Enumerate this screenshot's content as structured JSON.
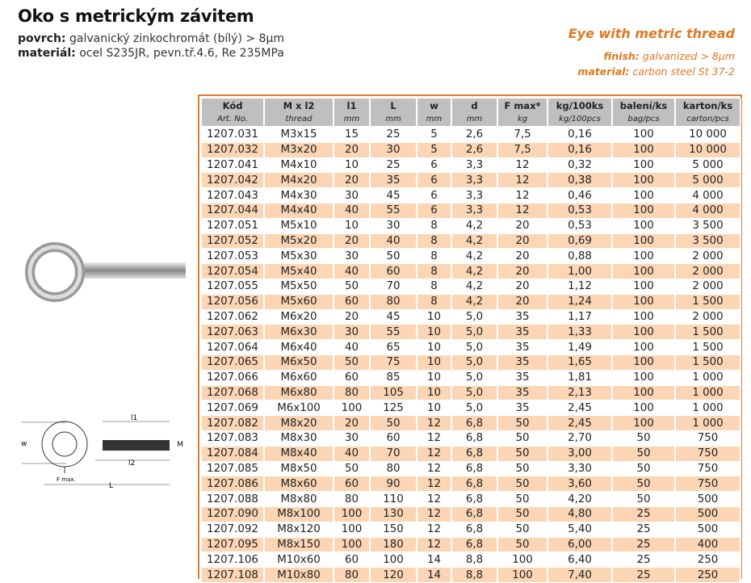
{
  "cz": {
    "title": "Oko s metrickým závitem",
    "surface_label": "povrch:",
    "surface_value": "galvanický zinkochromát (bílý) > 8µm",
    "material_label": "materiál:",
    "material_value": "ocel S235JR, pevn.tř.4.6, Re 235MPa"
  },
  "en": {
    "title": "Eye with metric thread",
    "finish_label": "finish:",
    "finish_value": "galvanized > 8µm",
    "material_label": "material:",
    "material_value": "carbon steel St 37-2"
  },
  "drawing_labels": {
    "l1": "l1",
    "l2": "l2",
    "w": "w",
    "M": "M",
    "L": "L",
    "fmax": "F max."
  },
  "accent": "#e07820",
  "table": {
    "headers": [
      "Kód",
      "M x l2",
      "l1",
      "L",
      "w",
      "d",
      "F max*",
      "kg/100ks",
      "balení/ks",
      "karton/ks"
    ],
    "units": [
      "Art. No.",
      "thread",
      "mm",
      "mm",
      "mm",
      "mm",
      "kg",
      "kg/100pcs",
      "bag/pcs",
      "carton/pcs"
    ],
    "rows": [
      [
        "1207.031",
        "M3x15",
        "15",
        "25",
        "5",
        "2,6",
        "7,5",
        "0,16",
        "100",
        "10 000"
      ],
      [
        "1207.032",
        "M3x20",
        "20",
        "30",
        "5",
        "2,6",
        "7,5",
        "0,16",
        "100",
        "10 000"
      ],
      [
        "1207.041",
        "M4x10",
        "10",
        "25",
        "6",
        "3,3",
        "12",
        "0,32",
        "100",
        "5 000"
      ],
      [
        "1207.042",
        "M4x20",
        "20",
        "35",
        "6",
        "3,3",
        "12",
        "0,38",
        "100",
        "5 000"
      ],
      [
        "1207.043",
        "M4x30",
        "30",
        "45",
        "6",
        "3,3",
        "12",
        "0,46",
        "100",
        "4 000"
      ],
      [
        "1207.044",
        "M4x40",
        "40",
        "55",
        "6",
        "3,3",
        "12",
        "0,53",
        "100",
        "4 000"
      ],
      [
        "1207.051",
        "M5x10",
        "10",
        "30",
        "8",
        "4,2",
        "20",
        "0,53",
        "100",
        "3 500"
      ],
      [
        "1207.052",
        "M5x20",
        "20",
        "40",
        "8",
        "4,2",
        "20",
        "0,69",
        "100",
        "3 500"
      ],
      [
        "1207.053",
        "M5x30",
        "30",
        "50",
        "8",
        "4,2",
        "20",
        "0,88",
        "100",
        "2 000"
      ],
      [
        "1207.054",
        "M5x40",
        "40",
        "60",
        "8",
        "4,2",
        "20",
        "1,00",
        "100",
        "2 000"
      ],
      [
        "1207.055",
        "M5x50",
        "50",
        "70",
        "8",
        "4,2",
        "20",
        "1,12",
        "100",
        "2 000"
      ],
      [
        "1207.056",
        "M5x60",
        "60",
        "80",
        "8",
        "4,2",
        "20",
        "1,24",
        "100",
        "1 500"
      ],
      [
        "1207.062",
        "M6x20",
        "20",
        "45",
        "10",
        "5,0",
        "35",
        "1,17",
        "100",
        "2 000"
      ],
      [
        "1207.063",
        "M6x30",
        "30",
        "55",
        "10",
        "5,0",
        "35",
        "1,33",
        "100",
        "1 500"
      ],
      [
        "1207.064",
        "M6x40",
        "40",
        "65",
        "10",
        "5,0",
        "35",
        "1,49",
        "100",
        "1 500"
      ],
      [
        "1207.065",
        "M6x50",
        "50",
        "75",
        "10",
        "5,0",
        "35",
        "1,65",
        "100",
        "1 500"
      ],
      [
        "1207.066",
        "M6x60",
        "60",
        "85",
        "10",
        "5,0",
        "35",
        "1,81",
        "100",
        "1 000"
      ],
      [
        "1207.068",
        "M6x80",
        "80",
        "105",
        "10",
        "5,0",
        "35",
        "2,13",
        "100",
        "1 000"
      ],
      [
        "1207.069",
        "M6x100",
        "100",
        "125",
        "10",
        "5,0",
        "35",
        "2,45",
        "100",
        "1 000"
      ],
      [
        "1207.082",
        "M8x20",
        "20",
        "50",
        "12",
        "6,8",
        "50",
        "2,45",
        "100",
        "1 000"
      ],
      [
        "1207.083",
        "M8x30",
        "30",
        "60",
        "12",
        "6,8",
        "50",
        "2,70",
        "50",
        "750"
      ],
      [
        "1207.084",
        "M8x40",
        "40",
        "70",
        "12",
        "6,8",
        "50",
        "3,00",
        "50",
        "750"
      ],
      [
        "1207.085",
        "M8x50",
        "50",
        "80",
        "12",
        "6,8",
        "50",
        "3,30",
        "50",
        "750"
      ],
      [
        "1207.086",
        "M8x60",
        "60",
        "90",
        "12",
        "6,8",
        "50",
        "3,60",
        "50",
        "750"
      ],
      [
        "1207.088",
        "M8x80",
        "80",
        "110",
        "12",
        "6,8",
        "50",
        "4,20",
        "50",
        "500"
      ],
      [
        "1207.090",
        "M8x100",
        "100",
        "130",
        "12",
        "6,8",
        "50",
        "4,80",
        "25",
        "500"
      ],
      [
        "1207.092",
        "M8x120",
        "100",
        "150",
        "12",
        "6,8",
        "50",
        "5,40",
        "25",
        "500"
      ],
      [
        "1207.095",
        "M8x150",
        "100",
        "180",
        "12",
        "6,8",
        "50",
        "6,00",
        "25",
        "400"
      ],
      [
        "1207.106",
        "M10x60",
        "60",
        "100",
        "14",
        "8,8",
        "100",
        "6,40",
        "25",
        "250"
      ],
      [
        "1207.108",
        "M10x80",
        "80",
        "120",
        "14",
        "8,8",
        "100",
        "7,40",
        "25",
        "250"
      ]
    ]
  }
}
